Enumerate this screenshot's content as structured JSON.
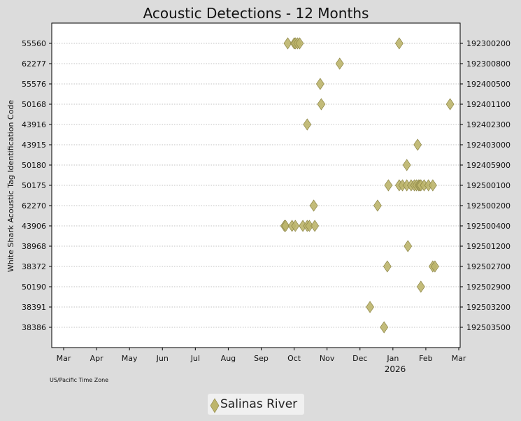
{
  "chart_data": {
    "type": "scatter",
    "title": "Acoustic Detections - 12 Months",
    "ylabel": "White Shark Acoustic Tag Identification Code",
    "xlabel": "",
    "x_ticks": [
      "Mar",
      "Apr",
      "May",
      "Jun",
      "Jul",
      "Aug",
      "Sep",
      "Oct",
      "Nov",
      "Dec",
      "Jan",
      "Feb",
      "Mar"
    ],
    "x_year_label": "2026",
    "x_range": [
      "2025-03-01",
      "2026-03-01"
    ],
    "timezone_note": "US/Pacific Time Zone",
    "y_categories_left": [
      "55560",
      "62277",
      "55576",
      "50168",
      "43916",
      "43915",
      "50180",
      "50175",
      "62270",
      "43906",
      "38968",
      "38372",
      "50190",
      "38391",
      "38386"
    ],
    "y_categories_right": [
      "192300200",
      "192300800",
      "192400500",
      "192401100",
      "192402300",
      "192403000",
      "192405900",
      "192500100",
      "192500200",
      "192500400",
      "192501200",
      "192502700",
      "192502900",
      "192503200",
      "192503500"
    ],
    "grid": "horizontal dotted",
    "legend_position": "bottom-center",
    "series": [
      {
        "name": "Salinas River",
        "color": "#bdb56b",
        "points": [
          {
            "x": "2025-09-24",
            "y": "55560"
          },
          {
            "x": "2025-09-30",
            "y": "55560"
          },
          {
            "x": "2025-10-01",
            "y": "55560"
          },
          {
            "x": "2025-10-03",
            "y": "55560"
          },
          {
            "x": "2025-10-05",
            "y": "55560"
          },
          {
            "x": "2026-01-05",
            "y": "55560"
          },
          {
            "x": "2025-11-11",
            "y": "62277"
          },
          {
            "x": "2025-10-24",
            "y": "55576"
          },
          {
            "x": "2025-10-25",
            "y": "50168"
          },
          {
            "x": "2026-02-21",
            "y": "50168"
          },
          {
            "x": "2025-10-12",
            "y": "43916"
          },
          {
            "x": "2026-01-22",
            "y": "43915"
          },
          {
            "x": "2026-01-12",
            "y": "50180"
          },
          {
            "x": "2025-12-26",
            "y": "50175"
          },
          {
            "x": "2026-01-05",
            "y": "50175"
          },
          {
            "x": "2026-01-08",
            "y": "50175"
          },
          {
            "x": "2026-01-12",
            "y": "50175"
          },
          {
            "x": "2026-01-16",
            "y": "50175"
          },
          {
            "x": "2026-01-19",
            "y": "50175"
          },
          {
            "x": "2026-01-21",
            "y": "50175"
          },
          {
            "x": "2026-01-23",
            "y": "50175"
          },
          {
            "x": "2026-01-24",
            "y": "50175"
          },
          {
            "x": "2026-01-25",
            "y": "50175"
          },
          {
            "x": "2026-01-28",
            "y": "50175"
          },
          {
            "x": "2026-02-01",
            "y": "50175"
          },
          {
            "x": "2026-02-05",
            "y": "50175"
          },
          {
            "x": "2025-10-18",
            "y": "62270"
          },
          {
            "x": "2025-12-16",
            "y": "62270"
          },
          {
            "x": "2025-09-21",
            "y": "43906"
          },
          {
            "x": "2025-09-22",
            "y": "43906"
          },
          {
            "x": "2025-09-28",
            "y": "43906"
          },
          {
            "x": "2025-10-01",
            "y": "43906"
          },
          {
            "x": "2025-10-08",
            "y": "43906"
          },
          {
            "x": "2025-10-12",
            "y": "43906"
          },
          {
            "x": "2025-10-14",
            "y": "43906"
          },
          {
            "x": "2025-10-19",
            "y": "43906"
          },
          {
            "x": "2026-01-13",
            "y": "38968"
          },
          {
            "x": "2025-12-25",
            "y": "38372"
          },
          {
            "x": "2026-02-05",
            "y": "38372"
          },
          {
            "x": "2026-02-07",
            "y": "38372"
          },
          {
            "x": "2026-01-25",
            "y": "50190"
          },
          {
            "x": "2025-12-09",
            "y": "38391"
          },
          {
            "x": "2025-12-22",
            "y": "38386"
          }
        ]
      }
    ]
  }
}
